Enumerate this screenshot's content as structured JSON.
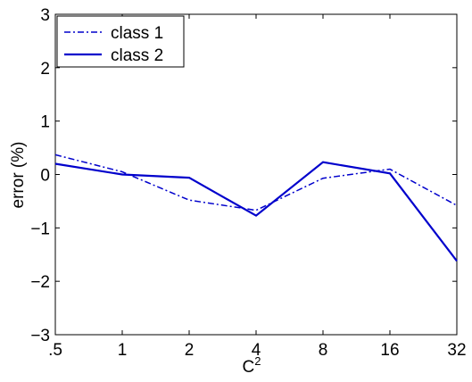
{
  "chart_data": {
    "type": "line",
    "title": "",
    "xlabel": "C",
    "xlabel_superscript": "2",
    "ylabel": "error (%)",
    "categories": [
      ".5",
      "1",
      "2",
      "4",
      "8",
      "16",
      "32"
    ],
    "x_scale": "log2",
    "ylim": [
      -3,
      3
    ],
    "yticks": [
      "−3",
      "−2",
      "−1",
      "0",
      "1",
      "2",
      "3"
    ],
    "grid": false,
    "legend_position": "top-left",
    "series": [
      {
        "name": "class 1",
        "style": "dash-dot",
        "color": "#0000cc",
        "values": [
          0.37,
          0.05,
          -0.48,
          -0.67,
          -0.07,
          0.1,
          -0.58
        ]
      },
      {
        "name": "class 2",
        "style": "solid",
        "color": "#0000cc",
        "values": [
          0.2,
          0.0,
          -0.06,
          -0.77,
          0.23,
          0.02,
          -1.62
        ]
      }
    ]
  }
}
